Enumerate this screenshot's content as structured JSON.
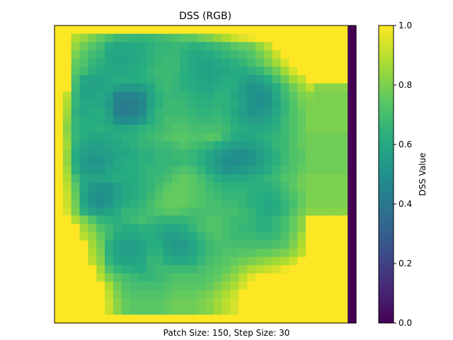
{
  "chart_data": {
    "type": "heatmap",
    "title": "DSS (RGB)",
    "xlabel": "Patch Size: 150, Step Size: 30",
    "ylabel": "",
    "colorbar": {
      "label": "DSS Value",
      "colormap": "viridis",
      "range": [
        0.0,
        1.0
      ],
      "ticks": [
        "0.0",
        "0.2",
        "0.4",
        "0.6",
        "0.8",
        "1.0"
      ]
    },
    "grid": false,
    "axes_ticks_visible": false,
    "matrix_shape": [
      36,
      36
    ],
    "matrix": [
      [
        1,
        1,
        1,
        1,
        1,
        1,
        1,
        1,
        1,
        1,
        1,
        1,
        1,
        1,
        1,
        1,
        1,
        1,
        1,
        1,
        1,
        1,
        1,
        1,
        1,
        1,
        1,
        1,
        1,
        1,
        1,
        1,
        1,
        1,
        1,
        0
      ],
      [
        1,
        1,
        0.88,
        0.84,
        0.8,
        0.76,
        0.72,
        0.68,
        0.67,
        0.66,
        0.66,
        0.67,
        0.68,
        0.7,
        0.72,
        0.74,
        0.75,
        0.78,
        0.8,
        0.84,
        0.88,
        0.92,
        0.95,
        0.98,
        1,
        1,
        1,
        1,
        1,
        1,
        1,
        1,
        1,
        1,
        1,
        0
      ],
      [
        1,
        1,
        0.84,
        0.78,
        0.73,
        0.69,
        0.62,
        0.6,
        0.6,
        0.61,
        0.62,
        0.64,
        0.66,
        0.66,
        0.67,
        0.66,
        0.64,
        0.64,
        0.66,
        0.68,
        0.7,
        0.74,
        0.76,
        0.78,
        0.84,
        0.9,
        1,
        1,
        1,
        1,
        1,
        1,
        1,
        1,
        1,
        0
      ],
      [
        1,
        1,
        0.8,
        0.74,
        0.69,
        0.66,
        0.6,
        0.58,
        0.58,
        0.6,
        0.61,
        0.64,
        0.66,
        0.67,
        0.67,
        0.64,
        0.61,
        0.6,
        0.61,
        0.64,
        0.66,
        0.68,
        0.7,
        0.73,
        0.78,
        0.84,
        0.92,
        1,
        1,
        1,
        1,
        1,
        1,
        1,
        1,
        0
      ],
      [
        1,
        1,
        0.76,
        0.72,
        0.66,
        0.64,
        0.6,
        0.58,
        0.58,
        0.6,
        0.62,
        0.65,
        0.67,
        0.68,
        0.68,
        0.64,
        0.6,
        0.58,
        0.58,
        0.6,
        0.62,
        0.64,
        0.66,
        0.7,
        0.74,
        0.8,
        0.86,
        0.94,
        1,
        1,
        1,
        1,
        1,
        1,
        1,
        0
      ],
      [
        1,
        1,
        0.74,
        0.69,
        0.64,
        0.62,
        0.6,
        0.6,
        0.6,
        0.61,
        0.63,
        0.66,
        0.68,
        0.68,
        0.67,
        0.63,
        0.6,
        0.58,
        0.57,
        0.58,
        0.6,
        0.62,
        0.62,
        0.64,
        0.66,
        0.72,
        0.78,
        0.86,
        0.94,
        1,
        1,
        1,
        1,
        1,
        1,
        0
      ],
      [
        1,
        1,
        0.7,
        0.6,
        0.58,
        0.58,
        0.6,
        0.62,
        0.62,
        0.62,
        0.63,
        0.65,
        0.67,
        0.68,
        0.66,
        0.63,
        0.61,
        0.59,
        0.58,
        0.6,
        0.62,
        0.62,
        0.58,
        0.56,
        0.58,
        0.62,
        0.7,
        0.78,
        0.86,
        0.9,
        1,
        1,
        1,
        1,
        1,
        0
      ],
      [
        1,
        1,
        0.68,
        0.58,
        0.57,
        0.58,
        0.6,
        0.56,
        0.54,
        0.54,
        0.56,
        0.6,
        0.66,
        0.68,
        0.66,
        0.64,
        0.62,
        0.6,
        0.6,
        0.62,
        0.63,
        0.62,
        0.56,
        0.52,
        0.52,
        0.56,
        0.62,
        0.7,
        0.78,
        0.84,
        0.9,
        0.82,
        0.82,
        0.82,
        0.82,
        0.0
      ],
      [
        1,
        0.9,
        0.66,
        0.58,
        0.58,
        0.6,
        0.56,
        0.45,
        0.44,
        0.45,
        0.48,
        0.58,
        0.64,
        0.67,
        0.66,
        0.66,
        0.64,
        0.63,
        0.62,
        0.64,
        0.64,
        0.6,
        0.55,
        0.52,
        0.5,
        0.52,
        0.6,
        0.68,
        0.74,
        0.8,
        0.82,
        0.8,
        0.8,
        0.8,
        0.8,
        0
      ],
      [
        1,
        0.88,
        0.66,
        0.6,
        0.6,
        0.6,
        0.54,
        0.44,
        0.42,
        0.43,
        0.46,
        0.58,
        0.64,
        0.68,
        0.68,
        0.67,
        0.65,
        0.64,
        0.64,
        0.65,
        0.64,
        0.62,
        0.56,
        0.52,
        0.5,
        0.52,
        0.58,
        0.66,
        0.72,
        0.78,
        0.8,
        0.8,
        0.8,
        0.8,
        0.8,
        0
      ],
      [
        1,
        0.86,
        0.64,
        0.6,
        0.61,
        0.62,
        0.56,
        0.44,
        0.42,
        0.44,
        0.48,
        0.6,
        0.66,
        0.68,
        0.68,
        0.68,
        0.66,
        0.65,
        0.65,
        0.66,
        0.64,
        0.6,
        0.55,
        0.52,
        0.52,
        0.54,
        0.6,
        0.66,
        0.72,
        0.76,
        0.8,
        0.8,
        0.8,
        0.8,
        0.8,
        0
      ],
      [
        1,
        0.84,
        0.66,
        0.62,
        0.62,
        0.62,
        0.58,
        0.5,
        0.48,
        0.5,
        0.54,
        0.62,
        0.66,
        0.7,
        0.7,
        0.7,
        0.68,
        0.67,
        0.67,
        0.68,
        0.66,
        0.62,
        0.58,
        0.56,
        0.56,
        0.58,
        0.62,
        0.68,
        0.72,
        0.76,
        0.8,
        0.8,
        0.8,
        0.8,
        0.8,
        0
      ],
      [
        1,
        0.82,
        0.66,
        0.62,
        0.62,
        0.64,
        0.62,
        0.6,
        0.6,
        0.62,
        0.64,
        0.66,
        0.68,
        0.7,
        0.72,
        0.72,
        0.7,
        0.7,
        0.7,
        0.7,
        0.68,
        0.64,
        0.62,
        0.6,
        0.6,
        0.62,
        0.64,
        0.68,
        0.72,
        0.76,
        0.8,
        0.8,
        0.8,
        0.8,
        0.8,
        0
      ],
      [
        1,
        0.84,
        0.66,
        0.62,
        0.6,
        0.6,
        0.6,
        0.62,
        0.64,
        0.64,
        0.66,
        0.68,
        0.7,
        0.72,
        0.74,
        0.74,
        0.72,
        0.72,
        0.74,
        0.72,
        0.66,
        0.62,
        0.6,
        0.6,
        0.62,
        0.64,
        0.66,
        0.68,
        0.72,
        0.76,
        0.78,
        0.78,
        0.78,
        0.78,
        0.78,
        0
      ],
      [
        1,
        0.86,
        0.64,
        0.58,
        0.56,
        0.56,
        0.58,
        0.6,
        0.62,
        0.64,
        0.66,
        0.66,
        0.68,
        0.68,
        0.7,
        0.72,
        0.7,
        0.68,
        0.66,
        0.62,
        0.58,
        0.56,
        0.55,
        0.56,
        0.58,
        0.62,
        0.66,
        0.68,
        0.72,
        0.76,
        0.78,
        0.78,
        0.78,
        0.78,
        0.78,
        0
      ],
      [
        1,
        0.84,
        0.62,
        0.56,
        0.54,
        0.55,
        0.56,
        0.58,
        0.6,
        0.62,
        0.64,
        0.64,
        0.66,
        0.66,
        0.68,
        0.68,
        0.66,
        0.64,
        0.6,
        0.56,
        0.52,
        0.5,
        0.5,
        0.52,
        0.56,
        0.6,
        0.64,
        0.68,
        0.72,
        0.74,
        0.78,
        0.78,
        0.78,
        0.78,
        0.78,
        0
      ],
      [
        1,
        0.84,
        0.62,
        0.54,
        0.52,
        0.52,
        0.56,
        0.6,
        0.62,
        0.62,
        0.64,
        0.64,
        0.66,
        0.66,
        0.66,
        0.68,
        0.66,
        0.63,
        0.58,
        0.54,
        0.5,
        0.48,
        0.5,
        0.52,
        0.56,
        0.6,
        0.64,
        0.68,
        0.72,
        0.74,
        0.78,
        0.78,
        0.78,
        0.78,
        0.78,
        0
      ],
      [
        1,
        0.86,
        0.64,
        0.56,
        0.54,
        0.54,
        0.58,
        0.6,
        0.62,
        0.62,
        0.64,
        0.66,
        0.66,
        0.68,
        0.7,
        0.72,
        0.7,
        0.66,
        0.6,
        0.56,
        0.52,
        0.52,
        0.54,
        0.56,
        0.58,
        0.62,
        0.66,
        0.7,
        0.72,
        0.76,
        0.78,
        0.78,
        0.78,
        0.78,
        0.78,
        0
      ],
      [
        1,
        0.88,
        0.7,
        0.6,
        0.58,
        0.58,
        0.6,
        0.62,
        0.62,
        0.62,
        0.64,
        0.66,
        0.68,
        0.7,
        0.74,
        0.76,
        0.74,
        0.7,
        0.66,
        0.62,
        0.6,
        0.6,
        0.6,
        0.62,
        0.64,
        0.66,
        0.68,
        0.72,
        0.74,
        0.78,
        0.8,
        0.8,
        0.8,
        0.8,
        0.8,
        0
      ],
      [
        1,
        0.9,
        0.74,
        0.6,
        0.54,
        0.52,
        0.52,
        0.56,
        0.6,
        0.62,
        0.64,
        0.66,
        0.7,
        0.74,
        0.76,
        0.76,
        0.74,
        0.72,
        0.68,
        0.66,
        0.64,
        0.64,
        0.64,
        0.64,
        0.64,
        0.64,
        0.66,
        0.7,
        0.74,
        0.78,
        0.8,
        0.8,
        0.8,
        0.8,
        0.8,
        0
      ],
      [
        1,
        0.92,
        0.76,
        0.58,
        0.52,
        0.5,
        0.52,
        0.56,
        0.6,
        0.62,
        0.64,
        0.68,
        0.72,
        0.76,
        0.76,
        0.76,
        0.74,
        0.72,
        0.7,
        0.68,
        0.66,
        0.66,
        0.66,
        0.64,
        0.62,
        0.62,
        0.64,
        0.68,
        0.72,
        0.76,
        0.8,
        0.8,
        0.8,
        0.8,
        0.8,
        0
      ],
      [
        1,
        0.92,
        0.78,
        0.58,
        0.52,
        0.5,
        0.52,
        0.58,
        0.62,
        0.64,
        0.66,
        0.7,
        0.74,
        0.76,
        0.76,
        0.76,
        0.74,
        0.72,
        0.7,
        0.7,
        0.68,
        0.68,
        0.66,
        0.64,
        0.62,
        0.6,
        0.62,
        0.66,
        0.7,
        0.76,
        0.8,
        0.8,
        0.8,
        0.8,
        0.8,
        0
      ],
      [
        1,
        0.94,
        0.8,
        0.64,
        0.58,
        0.56,
        0.58,
        0.62,
        0.66,
        0.66,
        0.68,
        0.7,
        0.72,
        0.74,
        0.74,
        0.72,
        0.7,
        0.7,
        0.7,
        0.7,
        0.7,
        0.7,
        0.68,
        0.66,
        0.62,
        0.6,
        0.62,
        0.66,
        0.72,
        0.78,
        0.82,
        0.82,
        0.82,
        0.82,
        0.82,
        0
      ],
      [
        1,
        1,
        0.88,
        0.8,
        0.72,
        0.66,
        0.64,
        0.64,
        0.66,
        0.68,
        0.7,
        0.68,
        0.66,
        0.66,
        0.66,
        0.66,
        0.68,
        0.7,
        0.72,
        0.72,
        0.7,
        0.68,
        0.68,
        0.66,
        0.64,
        0.64,
        0.66,
        0.7,
        0.76,
        0.82,
        1,
        1,
        1,
        1,
        1,
        0
      ],
      [
        1,
        1,
        1,
        0.86,
        0.8,
        0.72,
        0.68,
        0.64,
        0.62,
        0.62,
        0.64,
        0.64,
        0.62,
        0.6,
        0.6,
        0.62,
        0.66,
        0.7,
        0.72,
        0.72,
        0.7,
        0.68,
        0.66,
        0.66,
        0.64,
        0.64,
        0.66,
        0.7,
        0.76,
        0.82,
        1,
        1,
        1,
        1,
        1,
        0
      ],
      [
        1,
        1,
        1,
        0.9,
        0.84,
        0.76,
        0.68,
        0.62,
        0.6,
        0.6,
        0.62,
        0.62,
        0.6,
        0.56,
        0.56,
        0.58,
        0.62,
        0.66,
        0.7,
        0.72,
        0.7,
        0.68,
        0.68,
        0.68,
        0.66,
        0.66,
        0.68,
        0.72,
        0.78,
        0.86,
        1,
        1,
        1,
        1,
        1,
        0
      ],
      [
        1,
        1,
        1,
        1,
        0.86,
        0.78,
        0.64,
        0.58,
        0.56,
        0.56,
        0.58,
        0.62,
        0.62,
        0.56,
        0.54,
        0.54,
        0.58,
        0.64,
        0.68,
        0.7,
        0.7,
        0.7,
        0.7,
        0.7,
        0.7,
        0.7,
        0.72,
        0.74,
        0.8,
        0.88,
        1,
        1,
        1,
        1,
        1,
        0
      ],
      [
        1,
        1,
        1,
        1,
        0.88,
        0.8,
        0.64,
        0.58,
        0.56,
        0.56,
        0.58,
        0.64,
        0.64,
        0.58,
        0.56,
        0.56,
        0.58,
        0.64,
        0.68,
        0.7,
        0.72,
        0.72,
        0.74,
        0.74,
        0.76,
        0.76,
        0.78,
        0.8,
        0.84,
        0.9,
        1,
        1,
        1,
        1,
        1,
        0
      ],
      [
        1,
        1,
        1,
        1,
        0.9,
        0.82,
        0.66,
        0.6,
        0.58,
        0.58,
        0.6,
        0.66,
        0.66,
        0.62,
        0.6,
        0.6,
        0.62,
        0.66,
        0.7,
        0.72,
        0.74,
        0.76,
        0.78,
        0.8,
        0.82,
        0.84,
        0.86,
        0.88,
        0.92,
        1,
        1,
        1,
        1,
        1,
        1,
        0
      ],
      [
        1,
        1,
        1,
        1,
        1,
        0.86,
        0.72,
        0.66,
        0.64,
        0.62,
        0.62,
        0.66,
        0.68,
        0.68,
        0.68,
        0.68,
        0.68,
        0.7,
        0.72,
        0.74,
        0.76,
        0.8,
        0.84,
        0.88,
        0.9,
        0.92,
        0.94,
        0.98,
        1,
        1,
        1,
        1,
        1,
        1,
        1,
        0
      ],
      [
        1,
        1,
        1,
        1,
        1,
        0.9,
        0.8,
        0.74,
        0.7,
        0.68,
        0.66,
        0.66,
        0.68,
        0.7,
        0.72,
        0.72,
        0.72,
        0.72,
        0.74,
        0.76,
        0.8,
        0.84,
        0.9,
        0.96,
        1,
        1,
        1,
        1,
        1,
        1,
        1,
        1,
        1,
        1,
        1,
        0
      ],
      [
        1,
        1,
        1,
        1,
        1,
        1,
        0.88,
        0.78,
        0.72,
        0.7,
        0.7,
        0.7,
        0.7,
        0.72,
        0.74,
        0.74,
        0.74,
        0.74,
        0.76,
        0.8,
        0.84,
        0.88,
        0.94,
        1,
        1,
        1,
        1,
        1,
        1,
        1,
        1,
        1,
        1,
        1,
        1,
        0
      ],
      [
        1,
        1,
        1,
        1,
        1,
        1,
        0.9,
        0.8,
        0.74,
        0.72,
        0.72,
        0.72,
        0.72,
        0.74,
        0.76,
        0.76,
        0.76,
        0.78,
        0.8,
        0.84,
        0.88,
        0.92,
        1,
        1,
        1,
        1,
        1,
        1,
        1,
        1,
        1,
        1,
        1,
        1,
        1,
        0
      ],
      [
        1,
        1,
        1,
        1,
        1,
        1,
        0.92,
        0.82,
        0.76,
        0.74,
        0.74,
        0.74,
        0.74,
        0.76,
        0.78,
        0.78,
        0.78,
        0.8,
        0.82,
        0.86,
        0.9,
        0.94,
        1,
        1,
        1,
        1,
        1,
        1,
        1,
        1,
        1,
        1,
        1,
        1,
        1,
        0
      ],
      [
        1,
        1,
        1,
        1,
        1,
        1,
        0.92,
        0.82,
        0.76,
        0.74,
        0.74,
        0.74,
        0.74,
        0.76,
        0.78,
        0.78,
        0.78,
        0.8,
        0.82,
        0.86,
        0.9,
        0.94,
        1,
        1,
        1,
        1,
        1,
        1,
        1,
        1,
        1,
        1,
        1,
        1,
        1,
        0
      ],
      [
        1,
        1,
        1,
        1,
        1,
        1,
        1,
        1,
        1,
        1,
        1,
        1,
        1,
        1,
        1,
        1,
        1,
        1,
        1,
        1,
        1,
        1,
        1,
        1,
        1,
        1,
        1,
        1,
        1,
        1,
        1,
        1,
        1,
        1,
        1,
        0
      ]
    ]
  }
}
